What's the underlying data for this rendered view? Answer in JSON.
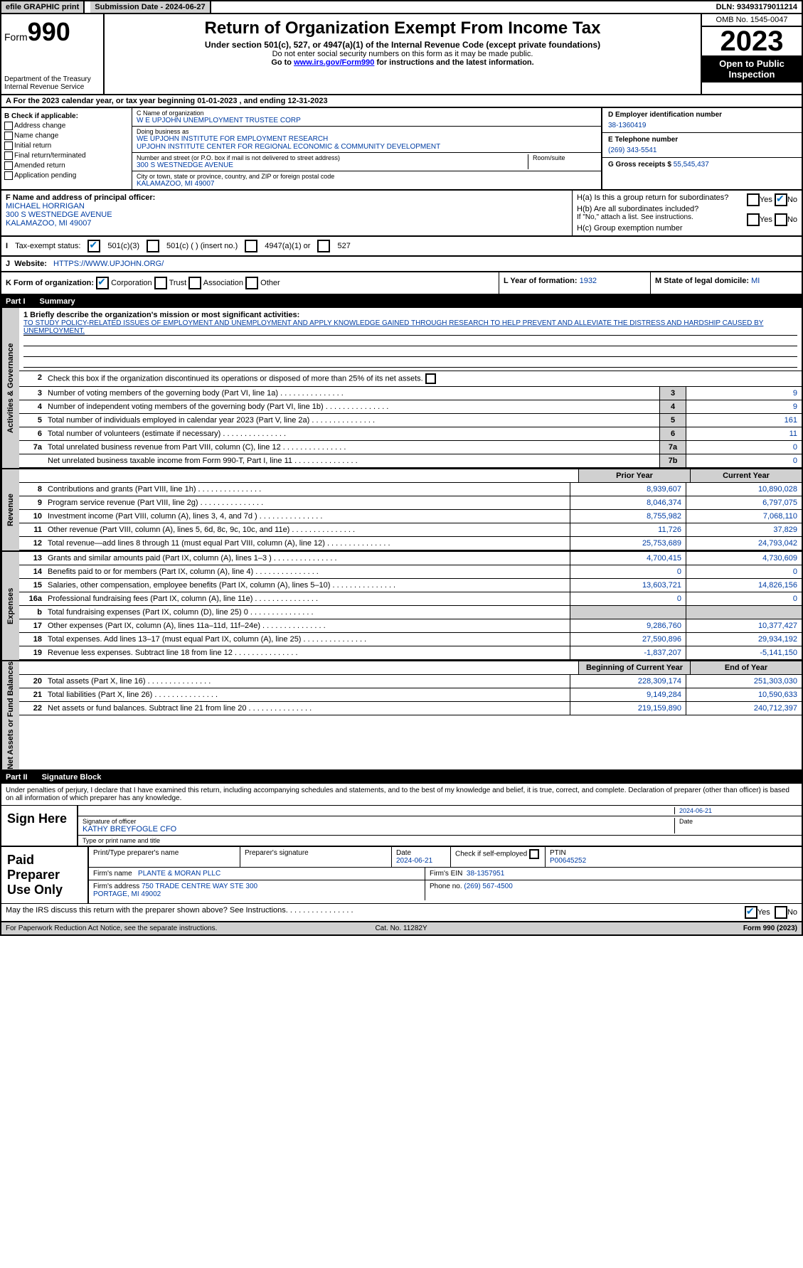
{
  "topbar": {
    "efile": "efile GRAPHIC print",
    "submission_label": "Submission Date - 2024-06-27",
    "dln": "DLN: 93493179011214"
  },
  "header": {
    "form_word": "Form",
    "form_num": "990",
    "title": "Return of Organization Exempt From Income Tax",
    "sub": "Under section 501(c), 527, or 4947(a)(1) of the Internal Revenue Code (except private foundations)",
    "note1": "Do not enter social security numbers on this form as it may be made public.",
    "note2_pre": "Go to ",
    "note2_link": "www.irs.gov/Form990",
    "note2_post": " for instructions and the latest information.",
    "dept": "Department of the Treasury Internal Revenue Service",
    "omb": "OMB No. 1545-0047",
    "year": "2023",
    "inspection": "Open to Public Inspection"
  },
  "row_a": "A For the 2023 calendar year, or tax year beginning 01-01-2023    , and ending 12-31-2023",
  "section_b": {
    "label": "B Check if applicable:",
    "opts": [
      "Address change",
      "Name change",
      "Initial return",
      "Final return/terminated",
      "Amended return",
      "Application pending"
    ]
  },
  "section_c": {
    "lbl_name": "C Name of organization",
    "name": "W E UPJOHN UNEMPLOYMENT TRUSTEE CORP",
    "lbl_dba": "Doing business as",
    "dba1": "WE UPJOHN INSTITUTE FOR EMPLOYMENT RESEARCH",
    "dba2": "UPJOHN INSTITUTE CENTER FOR REGIONAL ECONOMIC & COMMUNITY DEVELOPMENT",
    "lbl_street": "Number and street (or P.O. box if mail is not delivered to street address)",
    "street": "300 S WESTNEDGE AVENUE",
    "lbl_room": "Room/suite",
    "lbl_city": "City or town, state or province, country, and ZIP or foreign postal code",
    "city": "KALAMAZOO, MI  49007"
  },
  "section_d": {
    "lbl": "D Employer identification number",
    "val": "38-1360419"
  },
  "section_e": {
    "lbl": "E Telephone number",
    "val": "(269) 343-5541"
  },
  "section_g": {
    "lbl": "G Gross receipts $",
    "val": "55,545,437"
  },
  "section_f": {
    "lbl": "F  Name and address of principal officer:",
    "name": "MICHAEL HORRIGAN",
    "street": "300 S WESTNEDGE AVENUE",
    "city": "KALAMAZOO, MI  49007"
  },
  "section_h": {
    "ha": "H(a)  Is this a group return for subordinates?",
    "hb": "H(b)  Are all subordinates included?",
    "hb_note": "If \"No,\" attach a list. See instructions.",
    "hc": "H(c)  Group exemption number",
    "yes": "Yes",
    "no": "No"
  },
  "section_i": {
    "lbl": "Tax-exempt status:",
    "o1": "501(c)(3)",
    "o2": "501(c) (  ) (insert no.)",
    "o3": "4947(a)(1) or",
    "o4": "527"
  },
  "section_j": {
    "lbl": "Website:",
    "val": "HTTPS://WWW.UPJOHN.ORG/"
  },
  "section_k": {
    "lbl": "K Form of organization:",
    "o1": "Corporation",
    "o2": "Trust",
    "o3": "Association",
    "o4": "Other",
    "l_lbl": "L Year of formation:",
    "l_val": "1932",
    "m_lbl": "M State of legal domicile:",
    "m_val": "MI"
  },
  "parts": {
    "p1": "Part I",
    "p1_t": "Summary",
    "p2": "Part II",
    "p2_t": "Signature Block"
  },
  "vtabs": {
    "ag": "Activities & Governance",
    "rev": "Revenue",
    "exp": "Expenses",
    "na": "Net Assets or Fund Balances"
  },
  "mission": {
    "lbl": "1   Briefly describe the organization's mission or most significant activities:",
    "txt": "TO STUDY POLICY-RELATED ISSUES OF EMPLOYMENT AND UNEMPLOYMENT AND APPLY KNOWLEDGE GAINED THROUGH RESEARCH TO HELP PREVENT AND ALLEVIATE THE DISTRESS AND HARDSHIP CAUSED BY UNEMPLOYMENT."
  },
  "line2": "Check this box        if the organization discontinued its operations or disposed of more than 25% of its net assets.",
  "govlines": [
    {
      "n": "3",
      "t": "Number of voting members of the governing body (Part VI, line 1a)",
      "b": "3",
      "v": "9"
    },
    {
      "n": "4",
      "t": "Number of independent voting members of the governing body (Part VI, line 1b)",
      "b": "4",
      "v": "9"
    },
    {
      "n": "5",
      "t": "Total number of individuals employed in calendar year 2023 (Part V, line 2a)",
      "b": "5",
      "v": "161"
    },
    {
      "n": "6",
      "t": "Total number of volunteers (estimate if necessary)",
      "b": "6",
      "v": "11"
    },
    {
      "n": "7a",
      "t": "Total unrelated business revenue from Part VIII, column (C), line 12",
      "b": "7a",
      "v": "0"
    },
    {
      "n": "",
      "t": "Net unrelated business taxable income from Form 990-T, Part I, line 11",
      "b": "7b",
      "v": "0"
    }
  ],
  "hdr_prior": "Prior Year",
  "hdr_current": "Current Year",
  "revlines": [
    {
      "n": "8",
      "t": "Contributions and grants (Part VIII, line 1h)",
      "p": "8,939,607",
      "c": "10,890,028"
    },
    {
      "n": "9",
      "t": "Program service revenue (Part VIII, line 2g)",
      "p": "8,046,374",
      "c": "6,797,075"
    },
    {
      "n": "10",
      "t": "Investment income (Part VIII, column (A), lines 3, 4, and 7d )",
      "p": "8,755,982",
      "c": "7,068,110"
    },
    {
      "n": "11",
      "t": "Other revenue (Part VIII, column (A), lines 5, 6d, 8c, 9c, 10c, and 11e)",
      "p": "11,726",
      "c": "37,829"
    },
    {
      "n": "12",
      "t": "Total revenue—add lines 8 through 11 (must equal Part VIII, column (A), line 12)",
      "p": "25,753,689",
      "c": "24,793,042"
    }
  ],
  "explines": [
    {
      "n": "13",
      "t": "Grants and similar amounts paid (Part IX, column (A), lines 1–3 )",
      "p": "4,700,415",
      "c": "4,730,609"
    },
    {
      "n": "14",
      "t": "Benefits paid to or for members (Part IX, column (A), line 4)",
      "p": "0",
      "c": "0"
    },
    {
      "n": "15",
      "t": "Salaries, other compensation, employee benefits (Part IX, column (A), lines 5–10)",
      "p": "13,603,721",
      "c": "14,826,156"
    },
    {
      "n": "16a",
      "t": "Professional fundraising fees (Part IX, column (A), line 11e)",
      "p": "0",
      "c": "0"
    },
    {
      "n": "b",
      "t": "Total fundraising expenses (Part IX, column (D), line 25) 0",
      "p": "",
      "c": "",
      "grey": true
    },
    {
      "n": "17",
      "t": "Other expenses (Part IX, column (A), lines 11a–11d, 11f–24e)",
      "p": "9,286,760",
      "c": "10,377,427"
    },
    {
      "n": "18",
      "t": "Total expenses. Add lines 13–17 (must equal Part IX, column (A), line 25)",
      "p": "27,590,896",
      "c": "29,934,192"
    },
    {
      "n": "19",
      "t": "Revenue less expenses. Subtract line 18 from line 12",
      "p": "-1,837,207",
      "c": "-5,141,150"
    }
  ],
  "hdr_boy": "Beginning of Current Year",
  "hdr_eoy": "End of Year",
  "nalines": [
    {
      "n": "20",
      "t": "Total assets (Part X, line 16)",
      "p": "228,309,174",
      "c": "251,303,030"
    },
    {
      "n": "21",
      "t": "Total liabilities (Part X, line 26)",
      "p": "9,149,284",
      "c": "10,590,633"
    },
    {
      "n": "22",
      "t": "Net assets or fund balances. Subtract line 21 from line 20",
      "p": "219,159,890",
      "c": "240,712,397"
    }
  ],
  "sig": {
    "intro": "Under penalties of perjury, I declare that I have examined this return, including accompanying schedules and statements, and to the best of my knowledge and belief, it is true, correct, and complete. Declaration of preparer (other than officer) is based on all information of which preparer has any knowledge.",
    "sign_here": "Sign Here",
    "date": "2024-06-21",
    "sig_lbl": "Signature of officer",
    "officer": "KATHY BREYFOGLE CFO",
    "title_lbl": "Type or print name and title",
    "date_lbl": "Date"
  },
  "prep": {
    "label": "Paid Preparer Use Only",
    "h1": "Print/Type preparer's name",
    "h2": "Preparer's signature",
    "h3": "Date",
    "date": "2024-06-21",
    "h4": "Check        if self-employed",
    "h5": "PTIN",
    "ptin": "P00645252",
    "firm_lbl": "Firm's name",
    "firm": "PLANTE & MORAN PLLC",
    "ein_lbl": "Firm's EIN",
    "ein": "38-1357951",
    "addr_lbl": "Firm's address",
    "addr": "750 TRADE CENTRE WAY STE 300",
    "addr2": "PORTAGE, MI  49002",
    "phone_lbl": "Phone no.",
    "phone": "(269) 567-4500"
  },
  "discuss": {
    "txt": "May the IRS discuss this return with the preparer shown above? See Instructions.",
    "yes": "Yes",
    "no": "No"
  },
  "footer": {
    "left": "For Paperwork Reduction Act Notice, see the separate instructions.",
    "mid": "Cat. No. 11282Y",
    "right": "Form 990 (2023)"
  }
}
